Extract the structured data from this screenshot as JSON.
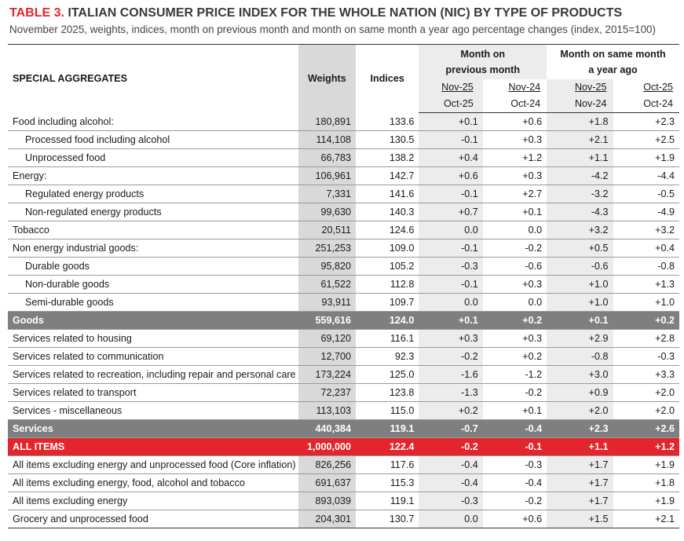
{
  "title": {
    "number": "TABLE 3.",
    "text": "ITALIAN CONSUMER PRICE INDEX FOR THE WHOLE NATION (NIC) BY TYPE OF PRODUCTS"
  },
  "subtitle": "November 2025, weights, indices, month on previous month and month on same month a year ago percentage changes (index, 2015=100)",
  "header": {
    "special_aggregates": "SPECIAL AGGREGATES",
    "weights": "Weights",
    "indices": "Indices",
    "mom_line1": "Month on",
    "mom_line2": "previous month",
    "yoy_line1": "Month on same month",
    "yoy_line2": "a year ago",
    "mom_a_top": "Nov-25",
    "mom_a_bottom": "Oct-25",
    "mom_b_top": "Nov-24",
    "mom_b_bottom": "Oct-24",
    "yoy_a_top": "Nov-25",
    "yoy_a_bottom": "Nov-24",
    "yoy_b_top": "Oct-25",
    "yoy_b_bottom": "Oct-24"
  },
  "rows": [
    {
      "name": "Food including alcohol:",
      "w": "180,891",
      "i": "133.6",
      "m1": "+0.1",
      "m2": "+0.6",
      "y1": "+1.8",
      "y2": "+2.3"
    },
    {
      "name": "Processed food including alcohol",
      "w": "114,108",
      "i": "130.5",
      "m1": "-0.1",
      "m2": "+0.3",
      "y1": "+2.1",
      "y2": "+2.5"
    },
    {
      "name": "Unprocessed food",
      "w": "66,783",
      "i": "138.2",
      "m1": "+0.4",
      "m2": "+1.2",
      "y1": "+1.1",
      "y2": "+1.9"
    },
    {
      "name": "Energy:",
      "w": "106,961",
      "i": "142.7",
      "m1": "+0.6",
      "m2": "+0.3",
      "y1": "-4.2",
      "y2": "-4.4"
    },
    {
      "name": "Regulated energy products",
      "w": "7,331",
      "i": "141.6",
      "m1": "-0.1",
      "m2": "+2.7",
      "y1": "-3.2",
      "y2": "-0.5"
    },
    {
      "name": "Non-regulated energy products",
      "w": "99,630",
      "i": "140.3",
      "m1": "+0.7",
      "m2": "+0.1",
      "y1": "-4.3",
      "y2": "-4.9"
    },
    {
      "name": "Tobacco",
      "w": "20,511",
      "i": "124.6",
      "m1": "0.0",
      "m2": "0.0",
      "y1": "+3.2",
      "y2": "+3.2"
    },
    {
      "name": "Non energy industrial goods:",
      "w": "251,253",
      "i": "109.0",
      "m1": "-0.1",
      "m2": "-0.2",
      "y1": "+0.5",
      "y2": "+0.4"
    },
    {
      "name": "Durable goods",
      "w": "95,820",
      "i": "105.2",
      "m1": "-0.3",
      "m2": "-0.6",
      "y1": "-0.6",
      "y2": "-0.8"
    },
    {
      "name": "Non-durable goods",
      "w": "61,522",
      "i": "112.8",
      "m1": "-0.1",
      "m2": "+0.3",
      "y1": "+1.0",
      "y2": "+1.3"
    },
    {
      "name": "Semi-durable goods",
      "w": "93,911",
      "i": "109.7",
      "m1": "0.0",
      "m2": "0.0",
      "y1": "+1.0",
      "y2": "+1.0"
    },
    {
      "name": "Goods",
      "w": "559,616",
      "i": "124.0",
      "m1": "+0.1",
      "m2": "+0.2",
      "y1": "+0.1",
      "y2": "+0.2"
    },
    {
      "name": "Services related to housing",
      "w": "69,120",
      "i": "116.1",
      "m1": "+0.3",
      "m2": "+0.3",
      "y1": "+2.9",
      "y2": "+2.8"
    },
    {
      "name": "Services related to communication",
      "w": "12,700",
      "i": "92.3",
      "m1": "-0.2",
      "m2": "+0.2",
      "y1": "-0.8",
      "y2": "-0.3"
    },
    {
      "name": "Services related to recreation, including repair and personal care",
      "w": "173,224",
      "i": "125.0",
      "m1": "-1.6",
      "m2": "-1.2",
      "y1": "+3.0",
      "y2": "+3.3"
    },
    {
      "name": "Services related to transport",
      "w": "72,237",
      "i": "123.8",
      "m1": "-1.3",
      "m2": "-0.2",
      "y1": "+0.9",
      "y2": "+2.0"
    },
    {
      "name": "Services - miscellaneous",
      "w": "113,103",
      "i": "115.0",
      "m1": "+0.2",
      "m2": "+0.1",
      "y1": "+2.0",
      "y2": "+2.0"
    },
    {
      "name": "Services",
      "w": "440,384",
      "i": "119.1",
      "m1": "-0.7",
      "m2": "-0.4",
      "y1": "+2.3",
      "y2": "+2.6"
    },
    {
      "name": "ALL ITEMS",
      "w": "1,000,000",
      "i": "122.4",
      "m1": "-0.2",
      "m2": "-0.1",
      "y1": "+1.1",
      "y2": "+1.2"
    },
    {
      "name": "All items excluding energy and unprocessed food (Core inflation)",
      "w": "826,256",
      "i": "117.6",
      "m1": "-0.4",
      "m2": "-0.3",
      "y1": "+1.7",
      "y2": "+1.9"
    },
    {
      "name": "All items excluding energy, food, alcohol and tobacco",
      "w": "691,637",
      "i": "115.3",
      "m1": "-0.4",
      "m2": "-0.4",
      "y1": "+1.7",
      "y2": "+1.8"
    },
    {
      "name": "All items excluding energy",
      "w": "893,039",
      "i": "119.1",
      "m1": "-0.3",
      "m2": "-0.2",
      "y1": "+1.7",
      "y2": "+1.9"
    },
    {
      "name": "Grocery and unprocessed food",
      "w": "204,301",
      "i": "130.7",
      "m1": "0.0",
      "m2": "+0.6",
      "y1": "+1.5",
      "y2": "+2.1"
    }
  ]
}
